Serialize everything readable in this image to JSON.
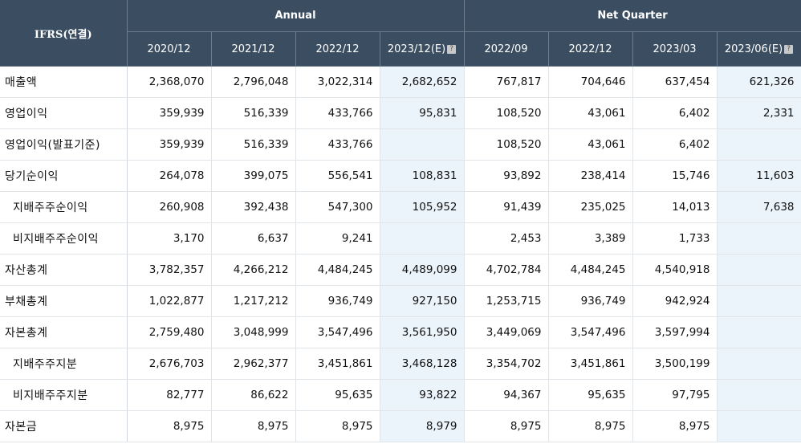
{
  "table": {
    "corner_label": "IFRS(연결)",
    "groups": [
      {
        "label": "Annual",
        "span": 4
      },
      {
        "label": "Net Quarter",
        "span": 4
      }
    ],
    "periods": [
      {
        "label": "2020/12",
        "estimate": false
      },
      {
        "label": "2021/12",
        "estimate": false
      },
      {
        "label": "2022/12",
        "estimate": false
      },
      {
        "label": "2023/12(E)",
        "estimate": true
      },
      {
        "label": "2022/09",
        "estimate": false
      },
      {
        "label": "2022/12",
        "estimate": false
      },
      {
        "label": "2023/03",
        "estimate": false
      },
      {
        "label": "2023/06(E)",
        "estimate": true
      }
    ],
    "estimate_icon": "?",
    "rows": [
      {
        "label": "매출액",
        "sub": false,
        "values": [
          "2,368,070",
          "2,796,048",
          "3,022,314",
          "2,682,652",
          "767,817",
          "704,646",
          "637,454",
          "621,326"
        ]
      },
      {
        "label": "영업이익",
        "sub": false,
        "values": [
          "359,939",
          "516,339",
          "433,766",
          "95,831",
          "108,520",
          "43,061",
          "6,402",
          "2,331"
        ]
      },
      {
        "label": "영업이익(발표기준)",
        "sub": false,
        "values": [
          "359,939",
          "516,339",
          "433,766",
          "",
          "108,520",
          "43,061",
          "6,402",
          ""
        ]
      },
      {
        "label": "당기순이익",
        "sub": false,
        "values": [
          "264,078",
          "399,075",
          "556,541",
          "108,831",
          "93,892",
          "238,414",
          "15,746",
          "11,603"
        ]
      },
      {
        "label": "지배주주순이익",
        "sub": true,
        "values": [
          "260,908",
          "392,438",
          "547,300",
          "105,952",
          "91,439",
          "235,025",
          "14,013",
          "7,638"
        ]
      },
      {
        "label": "비지배주주순이익",
        "sub": true,
        "values": [
          "3,170",
          "6,637",
          "9,241",
          "",
          "2,453",
          "3,389",
          "1,733",
          ""
        ]
      },
      {
        "label": "자산총계",
        "sub": false,
        "values": [
          "3,782,357",
          "4,266,212",
          "4,484,245",
          "4,489,099",
          "4,702,784",
          "4,484,245",
          "4,540,918",
          ""
        ]
      },
      {
        "label": "부채총계",
        "sub": false,
        "values": [
          "1,022,877",
          "1,217,212",
          "936,749",
          "927,150",
          "1,253,715",
          "936,749",
          "942,924",
          ""
        ]
      },
      {
        "label": "자본총계",
        "sub": false,
        "values": [
          "2,759,480",
          "3,048,999",
          "3,547,496",
          "3,561,950",
          "3,449,069",
          "3,547,496",
          "3,597,994",
          ""
        ]
      },
      {
        "label": "지배주주지분",
        "sub": true,
        "values": [
          "2,676,703",
          "2,962,377",
          "3,451,861",
          "3,468,128",
          "3,354,702",
          "3,451,861",
          "3,500,199",
          ""
        ]
      },
      {
        "label": "비지배주주지분",
        "sub": true,
        "values": [
          "82,777",
          "86,622",
          "95,635",
          "93,822",
          "94,367",
          "95,635",
          "97,795",
          ""
        ]
      },
      {
        "label": "자본금",
        "sub": false,
        "values": [
          "8,975",
          "8,975",
          "8,975",
          "8,979",
          "8,975",
          "8,975",
          "8,975",
          ""
        ]
      }
    ],
    "colors": {
      "header_bg": "#3a4d61",
      "estimate_bg": "#ebf4fb",
      "grid": "#e1e4e8"
    }
  }
}
